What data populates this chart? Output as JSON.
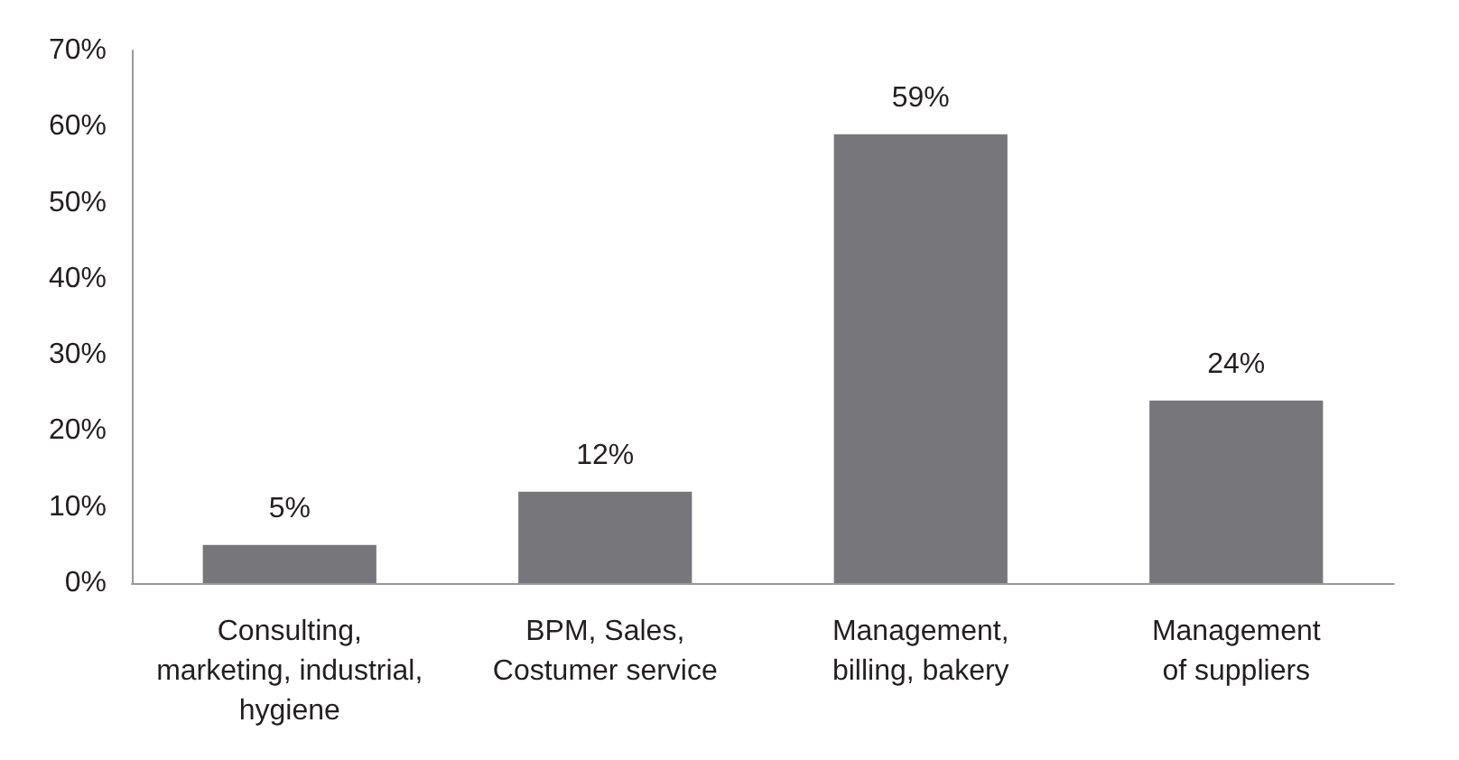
{
  "chart_data": {
    "type": "bar",
    "categories": [
      "Consulting,\nmarketing, industrial,\nhygiene",
      "BPM, Sales,\nCostumer service",
      "Management,\nbilling, bakery",
      "Management\nof suppliers"
    ],
    "values": [
      5,
      12,
      59,
      24
    ],
    "color": "#77777b",
    "value_labels": [
      "5%",
      "12%",
      "59%",
      "24%"
    ],
    "ylim": [
      0,
      70
    ],
    "yticks": [
      {
        "value": 0,
        "label": "0%"
      },
      {
        "value": 10,
        "label": "10%"
      },
      {
        "value": 20,
        "label": "20%"
      },
      {
        "value": 30,
        "label": "30%"
      },
      {
        "value": 40,
        "label": "40%"
      },
      {
        "value": 50,
        "label": "50%"
      },
      {
        "value": 60,
        "label": "60%"
      },
      {
        "value": 70,
        "label": "70%"
      }
    ],
    "grid": false
  }
}
